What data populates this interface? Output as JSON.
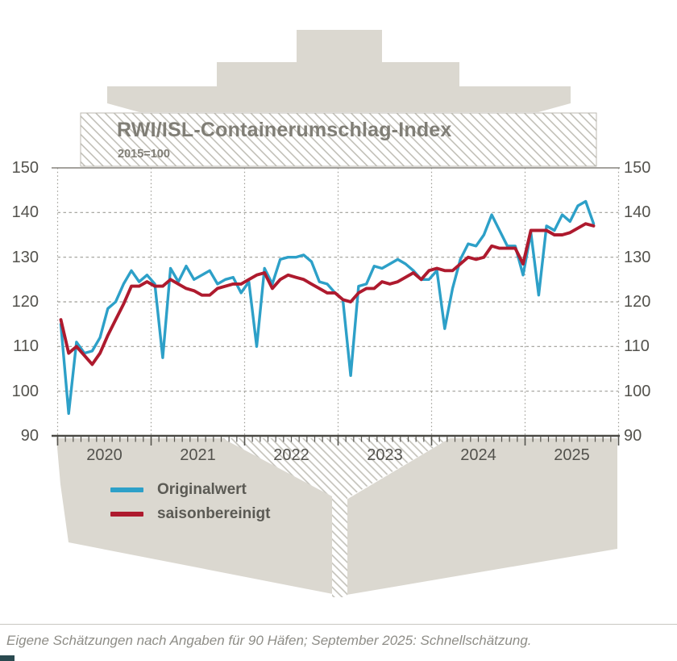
{
  "header": {
    "title": "RWI/ISL-Containerumschlag-Index",
    "subtitle": "2015=100"
  },
  "legend": [
    {
      "label": "Originalwert",
      "color": "#2da0c8"
    },
    {
      "label": "saisonbereinigt",
      "color": "#ae1a2e"
    }
  ],
  "footnote": "Eigene Schätzungen nach Angaben für 90 Häfen; September 2025: Schnellschätzung.",
  "colors": {
    "ship_gray": "#dbd8d0",
    "hatch_line": "#b9b7ae",
    "axis_text": "#53524d",
    "axis_line": "#4b4a45",
    "grid_line": "#9f9e98",
    "title_text": "#807e76",
    "original_blue": "#2da0c8",
    "adjusted_red": "#ae1a2e"
  },
  "chart_data": {
    "type": "line",
    "title": "RWI/ISL-Containerumschlag-Index",
    "subtitle": "2015=100",
    "x_unit": "month",
    "x_start": "2020-01",
    "x_end": "2025-09",
    "year_labels": [
      "2020",
      "2021",
      "2022",
      "2023",
      "2024",
      "2025"
    ],
    "y_ticks": [
      90,
      100,
      110,
      120,
      130,
      140,
      150
    ],
    "ylim": [
      90,
      150
    ],
    "grid": "dashed",
    "legend_position": "bottom-left",
    "series": [
      {
        "name": "Originalwert",
        "color": "#2da0c8",
        "values": [
          115,
          95,
          111,
          108.5,
          109,
          112,
          118.5,
          120,
          124,
          127,
          124.5,
          126,
          124,
          107.5,
          127.5,
          124.5,
          128,
          125,
          126,
          127,
          124,
          125,
          125.5,
          122,
          124.5,
          110,
          127.5,
          124,
          129.5,
          130,
          130,
          130.5,
          129,
          124.5,
          124,
          122,
          120.5,
          103.5,
          123.5,
          124,
          128,
          127.5,
          128.5,
          129.5,
          128.5,
          127,
          125,
          125,
          127,
          114,
          123,
          129.5,
          133,
          132.5,
          135,
          139.5,
          136,
          132.5,
          132.5,
          126,
          135.5,
          121.5,
          137,
          136,
          139.5,
          138,
          141.5,
          142.5,
          137.5
        ]
      },
      {
        "name": "saisonbereinigt",
        "color": "#ae1a2e",
        "values": [
          116,
          108.5,
          110,
          108,
          106,
          108.5,
          112.5,
          116,
          119.5,
          123.5,
          123.5,
          124.5,
          123.5,
          123.5,
          125,
          124,
          123,
          122.5,
          121.5,
          121.5,
          123,
          123.5,
          124,
          124,
          125,
          126,
          126.5,
          123,
          125,
          126,
          125.5,
          125,
          124,
          123,
          122,
          122,
          120.5,
          120,
          122,
          123,
          123,
          124.5,
          124,
          124.5,
          125.5,
          126.5,
          125,
          127,
          127.5,
          127,
          127,
          128.5,
          130,
          129.5,
          130,
          132.5,
          132,
          132,
          132,
          128.5,
          136,
          136,
          136,
          135,
          135,
          135.5,
          136.5,
          137.5,
          137
        ]
      }
    ]
  }
}
